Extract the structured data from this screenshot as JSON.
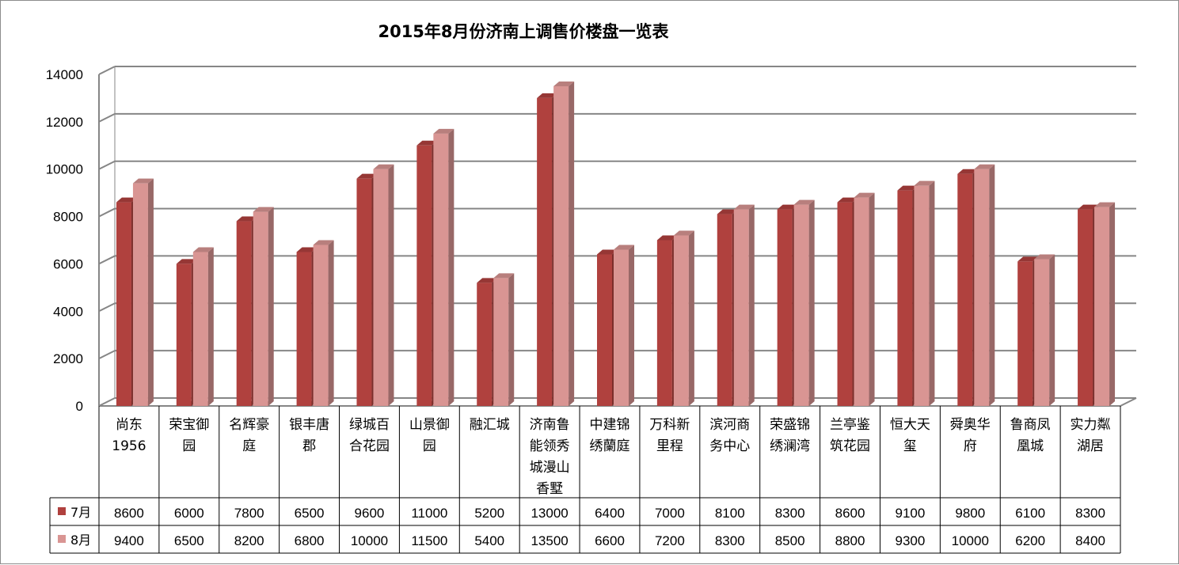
{
  "chart_data": {
    "type": "bar",
    "title": "2015年8月份济南上调售价楼盘一览表",
    "ylim": [
      0,
      14000
    ],
    "yticks": [
      "0",
      "2000",
      "4000",
      "6000",
      "8000",
      "10000",
      "12000",
      "14000"
    ],
    "grid": true,
    "legend_placement": "data-table",
    "categories": [
      [
        "尚东",
        "1956"
      ],
      [
        "荣宝御",
        "园"
      ],
      [
        "名辉豪",
        "庭"
      ],
      [
        "银丰唐",
        "郡"
      ],
      [
        "绿城百",
        "合花园"
      ],
      [
        "山景御",
        "园"
      ],
      [
        "融汇城"
      ],
      [
        "济南鲁",
        "能领秀",
        "城漫山",
        "香墅"
      ],
      [
        "中建锦",
        "绣蘭庭"
      ],
      [
        "万科新",
        "里程"
      ],
      [
        "滨河商",
        "务中心"
      ],
      [
        "荣盛锦",
        "绣澜湾"
      ],
      [
        "兰亭鉴",
        "筑花园"
      ],
      [
        "恒大天",
        "玺"
      ],
      [
        "舜奥华",
        "府"
      ],
      [
        "鲁商凤",
        "凰城"
      ],
      [
        "实力粼",
        "湖居"
      ]
    ],
    "series": [
      {
        "name": "7月",
        "color": "#b0413e",
        "values": [
          8600,
          6000,
          7800,
          6500,
          9600,
          11000,
          5200,
          13000,
          6400,
          7000,
          8100,
          8300,
          8600,
          9100,
          9800,
          6100,
          8300
        ]
      },
      {
        "name": "8月",
        "color": "#d99593",
        "values": [
          9400,
          6500,
          8200,
          6800,
          10000,
          11500,
          5400,
          13500,
          6600,
          7200,
          8300,
          8500,
          8800,
          9300,
          10000,
          6200,
          8400
        ]
      }
    ]
  }
}
